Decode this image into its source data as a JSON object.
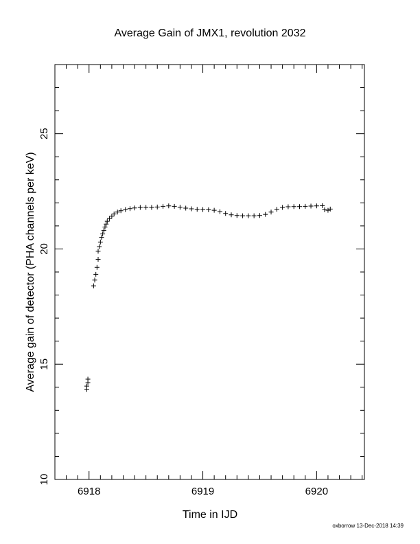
{
  "chart_data": {
    "type": "scatter",
    "title": "Average Gain of JMX1, revolution 2032",
    "xlabel": "Time in IJD",
    "ylabel": "Average gain of detector (PHA channels per keV)",
    "xlim": [
      6917.7,
      6920.42
    ],
    "ylim": [
      10,
      28
    ],
    "xticks": [
      "6918",
      "6919",
      "6920"
    ],
    "xtick_values": [
      6918,
      6919,
      6920
    ],
    "yticks": [
      "10",
      "15",
      "20",
      "25"
    ],
    "ytick_values": [
      10,
      15,
      20,
      25
    ],
    "marker": "+",
    "grid": false,
    "points": [
      [
        6917.98,
        13.9
      ],
      [
        6917.98,
        14.05
      ],
      [
        6917.99,
        14.2
      ],
      [
        6917.99,
        14.35
      ],
      [
        6918.04,
        18.4
      ],
      [
        6918.05,
        18.65
      ],
      [
        6918.06,
        18.9
      ],
      [
        6918.07,
        19.2
      ],
      [
        6918.08,
        19.55
      ],
      [
        6918.08,
        19.9
      ],
      [
        6918.09,
        20.1
      ],
      [
        6918.1,
        20.3
      ],
      [
        6918.11,
        20.5
      ],
      [
        6918.12,
        20.65
      ],
      [
        6918.13,
        20.8
      ],
      [
        6918.14,
        20.95
      ],
      [
        6918.15,
        21.08
      ],
      [
        6918.16,
        21.2
      ],
      [
        6918.18,
        21.32
      ],
      [
        6918.2,
        21.42
      ],
      [
        6918.22,
        21.52
      ],
      [
        6918.25,
        21.6
      ],
      [
        6918.28,
        21.66
      ],
      [
        6918.32,
        21.71
      ],
      [
        6918.36,
        21.75
      ],
      [
        6918.4,
        21.78
      ],
      [
        6918.45,
        21.8
      ],
      [
        6918.5,
        21.8
      ],
      [
        6918.55,
        21.8
      ],
      [
        6918.6,
        21.82
      ],
      [
        6918.65,
        21.85
      ],
      [
        6918.7,
        21.87
      ],
      [
        6918.75,
        21.85
      ],
      [
        6918.8,
        21.81
      ],
      [
        6918.85,
        21.77
      ],
      [
        6918.9,
        21.74
      ],
      [
        6918.95,
        21.72
      ],
      [
        6919.0,
        21.71
      ],
      [
        6919.05,
        21.7
      ],
      [
        6919.1,
        21.68
      ],
      [
        6919.15,
        21.62
      ],
      [
        6919.2,
        21.54
      ],
      [
        6919.25,
        21.48
      ],
      [
        6919.3,
        21.45
      ],
      [
        6919.35,
        21.44
      ],
      [
        6919.4,
        21.44
      ],
      [
        6919.45,
        21.44
      ],
      [
        6919.5,
        21.45
      ],
      [
        6919.55,
        21.5
      ],
      [
        6919.6,
        21.6
      ],
      [
        6919.65,
        21.72
      ],
      [
        6919.7,
        21.8
      ],
      [
        6919.75,
        21.83
      ],
      [
        6919.8,
        21.84
      ],
      [
        6919.85,
        21.84
      ],
      [
        6919.9,
        21.85
      ],
      [
        6919.95,
        21.86
      ],
      [
        6920.0,
        21.87
      ],
      [
        6920.05,
        21.88
      ],
      [
        6920.07,
        21.7
      ],
      [
        6920.1,
        21.68
      ],
      [
        6920.12,
        21.73
      ]
    ]
  },
  "footer": "oxborrow 13-Dec-2018 14:39"
}
